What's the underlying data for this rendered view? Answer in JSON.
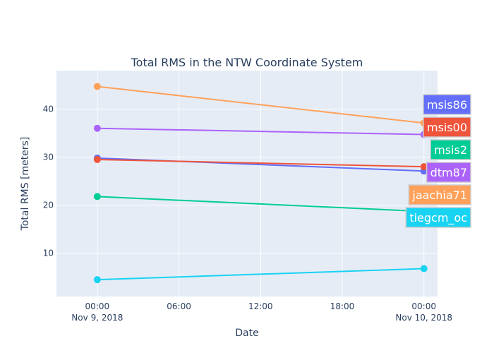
{
  "chart_data": {
    "type": "line",
    "title": "Total RMS in the NTW Coordinate System",
    "xlabel": "Date",
    "ylabel": "Total RMS [meters]",
    "x": [
      "2018-11-09 00:00",
      "2018-11-10 00:00"
    ],
    "xlim": [
      "2018-11-08 21:00",
      "2018-11-10 01:00"
    ],
    "ylim": [
      1,
      48
    ],
    "x_ticks": [
      {
        "value": "2018-11-09 00:00",
        "label": "00:00",
        "sublabel": "Nov 9, 2018"
      },
      {
        "value": "2018-11-09 06:00",
        "label": "06:00",
        "sublabel": ""
      },
      {
        "value": "2018-11-09 12:00",
        "label": "12:00",
        "sublabel": ""
      },
      {
        "value": "2018-11-09 18:00",
        "label": "18:00",
        "sublabel": ""
      },
      {
        "value": "2018-11-10 00:00",
        "label": "00:00",
        "sublabel": "Nov 10, 2018"
      }
    ],
    "y_ticks": [
      10,
      20,
      30,
      40
    ],
    "grid": true,
    "legend_placement": "right",
    "series": [
      {
        "name": "msis86",
        "color": "#636efa",
        "values": [
          29.8,
          27.1
        ]
      },
      {
        "name": "msis00",
        "color": "#ef553b",
        "values": [
          29.5,
          28.0
        ]
      },
      {
        "name": "msis2",
        "color": "#00cc96",
        "values": [
          21.8,
          18.7
        ]
      },
      {
        "name": "dtm87",
        "color": "#ab63fa",
        "values": [
          36.0,
          34.7
        ]
      },
      {
        "name": "jaachia71",
        "color": "#ffa15a",
        "values": [
          44.7,
          37.1
        ]
      },
      {
        "name": "tiegcm_oc",
        "color": "#19d3f3",
        "values": [
          4.5,
          6.8
        ]
      }
    ]
  }
}
